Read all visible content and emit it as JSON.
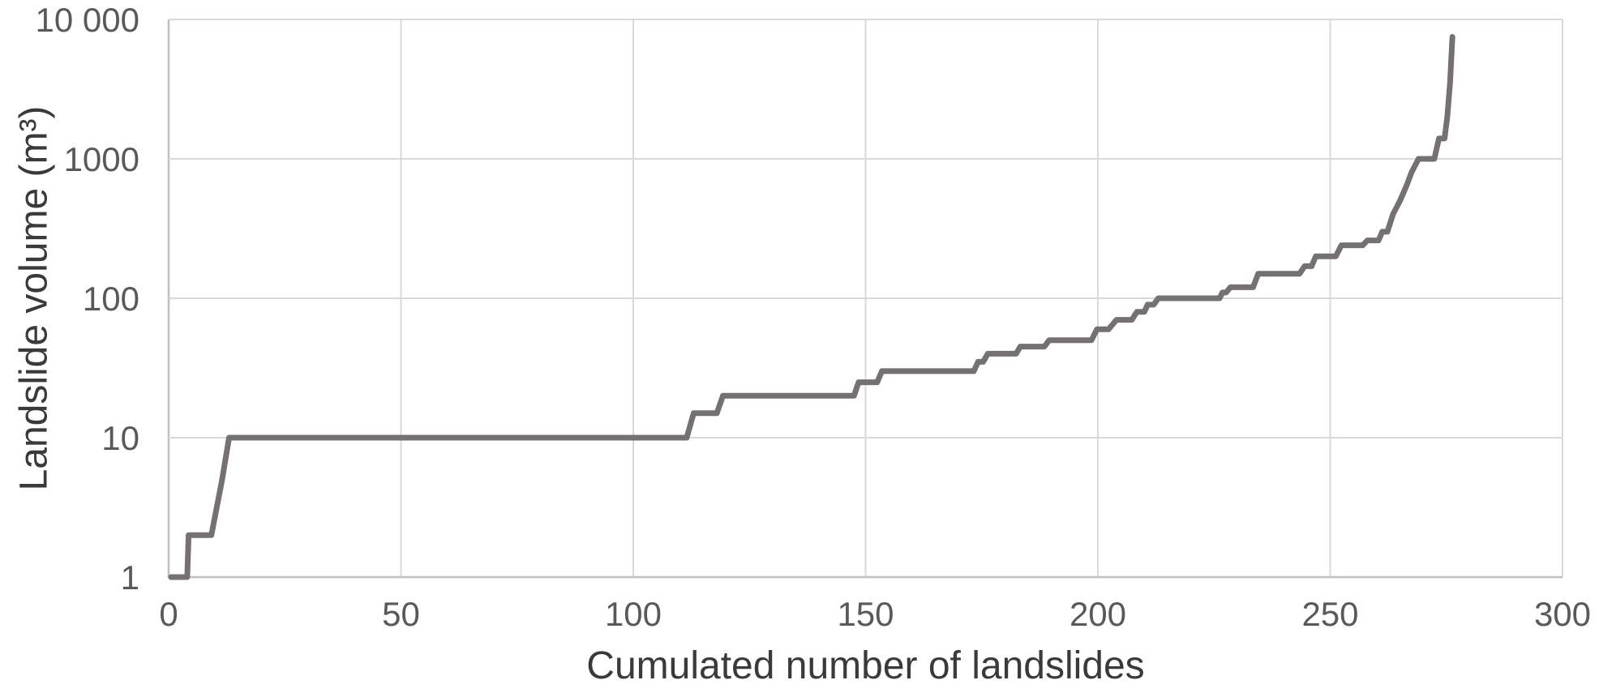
{
  "chart_data": {
    "type": "line",
    "title": "",
    "xlabel": "Cumulated number of landslides",
    "ylabel": "Landslide volume (m³)",
    "x_scale": "linear",
    "y_scale": "log",
    "xlim": [
      0,
      300
    ],
    "ylim": [
      1,
      10000
    ],
    "grid": true,
    "legend": "none",
    "x_ticks": [
      {
        "v": 0,
        "label": "0"
      },
      {
        "v": 50,
        "label": "50"
      },
      {
        "v": 100,
        "label": "100"
      },
      {
        "v": 150,
        "label": "150"
      },
      {
        "v": 200,
        "label": "200"
      },
      {
        "v": 250,
        "label": "250"
      },
      {
        "v": 300,
        "label": "300"
      }
    ],
    "y_ticks": [
      {
        "v": 1,
        "label": "1"
      },
      {
        "v": 10,
        "label": "10"
      },
      {
        "v": 100,
        "label": "100"
      },
      {
        "v": 1000,
        "label": "1000"
      },
      {
        "v": 10000,
        "label": "10 000"
      }
    ],
    "series_name": "landslide-volume-cumulative-curve",
    "line_color": "#767171",
    "line_width": 7,
    "grid_color": "#d9d9d9",
    "axis_color": "#bfbfbf",
    "tick_label_color": "#595959",
    "title_color": "#3a3a3a",
    "points": [
      [
        0.5,
        1
      ],
      [
        4,
        1
      ],
      [
        4.3,
        2
      ],
      [
        9.2,
        2
      ],
      [
        11.5,
        5
      ],
      [
        13,
        10
      ],
      [
        111.5,
        10
      ],
      [
        113,
        15
      ],
      [
        118,
        15
      ],
      [
        119.3,
        20
      ],
      [
        147.5,
        20
      ],
      [
        148.5,
        25
      ],
      [
        152.5,
        25
      ],
      [
        153.5,
        30
      ],
      [
        173.3,
        30
      ],
      [
        174.2,
        35
      ],
      [
        175.3,
        35
      ],
      [
        176.3,
        40
      ],
      [
        182.4,
        40
      ],
      [
        183.3,
        45
      ],
      [
        188.5,
        45
      ],
      [
        189.5,
        50
      ],
      [
        198.6,
        50
      ],
      [
        199.8,
        60
      ],
      [
        202.3,
        60
      ],
      [
        204,
        70
      ],
      [
        207.3,
        70
      ],
      [
        208.4,
        80
      ],
      [
        210,
        80
      ],
      [
        210.7,
        90
      ],
      [
        212,
        90
      ],
      [
        213,
        100
      ],
      [
        226.2,
        100
      ],
      [
        226.8,
        110
      ],
      [
        227.6,
        110
      ],
      [
        228.5,
        120
      ],
      [
        233.4,
        120
      ],
      [
        234.5,
        150
      ],
      [
        243.4,
        150
      ],
      [
        244.5,
        170
      ],
      [
        246,
        170
      ],
      [
        246.9,
        200
      ],
      [
        251.2,
        200
      ],
      [
        252.4,
        240
      ],
      [
        257,
        240
      ],
      [
        258,
        260
      ],
      [
        260.4,
        260
      ],
      [
        261.2,
        300
      ],
      [
        262.3,
        300
      ],
      [
        263.5,
        400
      ],
      [
        265,
        500
      ],
      [
        266.5,
        650
      ],
      [
        267.5,
        800
      ],
      [
        269,
        1000
      ],
      [
        272.4,
        1000
      ],
      [
        273.4,
        1400
      ],
      [
        274.6,
        1400
      ],
      [
        275.2,
        2000
      ],
      [
        275.8,
        3500
      ],
      [
        276.3,
        7500
      ]
    ]
  }
}
